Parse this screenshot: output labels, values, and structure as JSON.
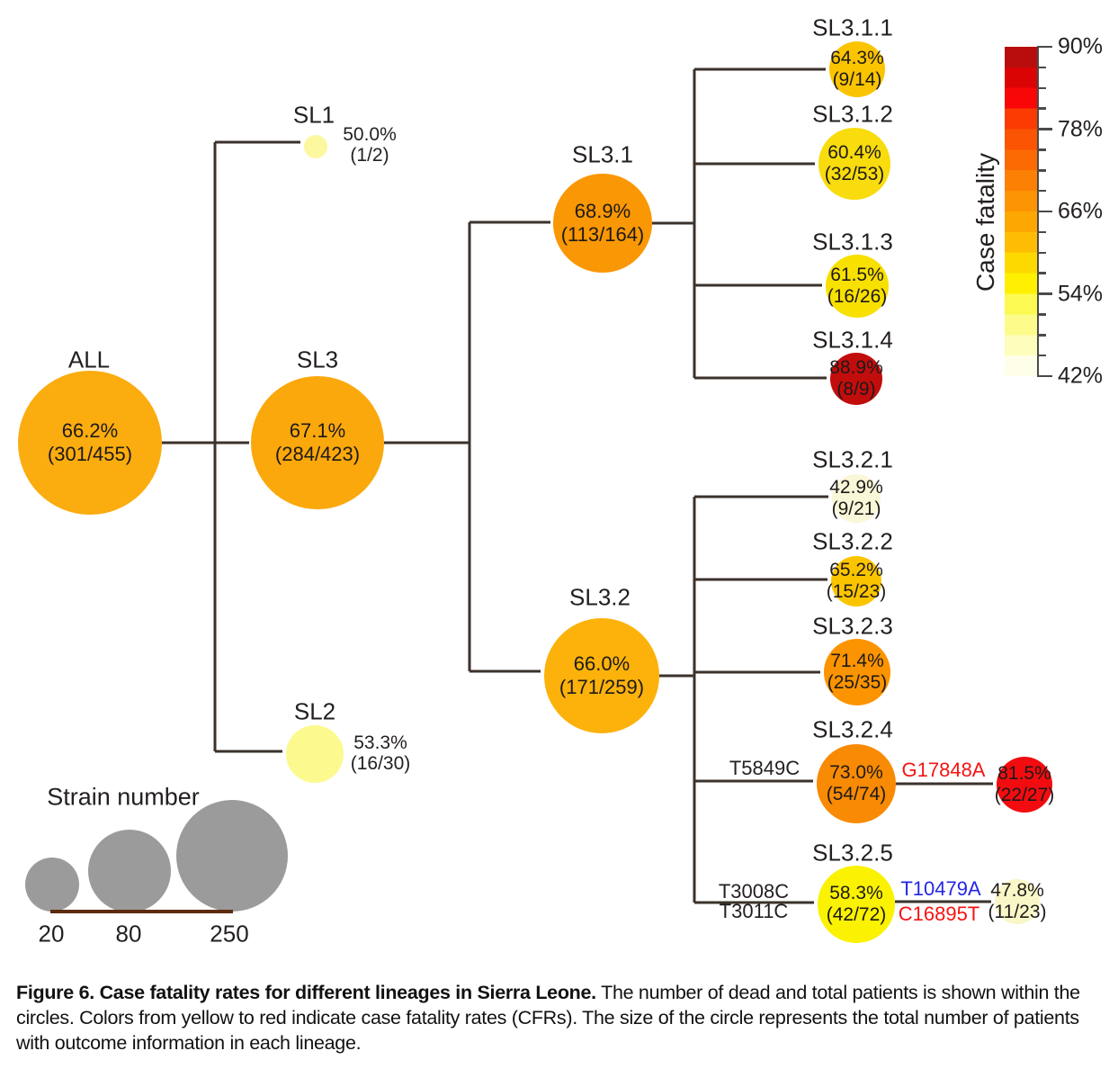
{
  "figure": {
    "line_color": "#3b322b",
    "nodes": {
      "all": {
        "label": "ALL",
        "cfr": "66.2%",
        "count": "(301/455)",
        "color": "#FBAC0F"
      },
      "sl1": {
        "label": "SL1",
        "cfr": "50.0%",
        "count": "(1/2)",
        "color": "#FBF8A0"
      },
      "sl2": {
        "label": "SL2",
        "cfr": "53.3%",
        "count": "(16/30)",
        "color": "#FCFA8E"
      },
      "sl3": {
        "label": "SL3",
        "cfr": "67.1%",
        "count": "(284/423)",
        "color": "#FBA80C"
      },
      "sl3_1": {
        "label": "SL3.1",
        "cfr": "68.9%",
        "count": "(113/164)",
        "color": "#FA9704"
      },
      "sl3_2": {
        "label": "SL3.2",
        "cfr": "66.0%",
        "count": "(171/259)",
        "color": "#FCB20B"
      },
      "sl3_1_1": {
        "label": "SL3.1.1",
        "cfr": "64.3%",
        "count": "(9/14)",
        "color": "#FBC400"
      },
      "sl3_1_2": {
        "label": "SL3.1.2",
        "cfr": "60.4%",
        "count": "(32/53)",
        "color": "#F8DC0D"
      },
      "sl3_1_3": {
        "label": "SL3.1.3",
        "cfr": "61.5%",
        "count": "(16/26)",
        "color": "#F8E000"
      },
      "sl3_1_4": {
        "label": "SL3.1.4",
        "cfr": "88.9%",
        "count": "(8/9)",
        "color": "#C20D0D"
      },
      "sl3_2_1": {
        "label": "SL3.2.1",
        "cfr": "42.9%",
        "count": "(9/21)",
        "color": "#FAF6D8"
      },
      "sl3_2_2": {
        "label": "SL3.2.2",
        "cfr": "65.2%",
        "count": "(15/23)",
        "color": "#FBC400"
      },
      "sl3_2_3": {
        "label": "SL3.2.3",
        "cfr": "71.4%",
        "count": "(25/35)",
        "color": "#FB9400"
      },
      "sl3_2_4": {
        "label": "SL3.2.4",
        "cfr": "73.0%",
        "count": "(54/74)",
        "color": "#F88A04"
      },
      "sl3_2_4m": {
        "cfr": "81.5%",
        "count": "(22/27)",
        "color": "#F20C10"
      },
      "sl3_2_5": {
        "label": "SL3.2.5",
        "cfr": "58.3%",
        "count": "(42/72)",
        "color": "#FAF201"
      },
      "sl3_2_5m": {
        "cfr": "47.8%",
        "count": "(11/23)",
        "color": "#F9F6C8"
      }
    },
    "mutations": {
      "t5849c": {
        "text": "T5849C",
        "color": "#231f20"
      },
      "g17848a": {
        "text": "G17848A",
        "color": "#F61313"
      },
      "t3008c": {
        "text": "T3008C",
        "color": "#231f20"
      },
      "t3011c": {
        "text": "T3011C",
        "color": "#231f20"
      },
      "t10479a": {
        "text": "T10479A",
        "color": "#2525E5"
      },
      "c16895t": {
        "text": "C16895T",
        "color": "#F61313"
      }
    },
    "edges": [
      {
        "from": "ALL",
        "to": "SL1"
      },
      {
        "from": "ALL",
        "to": "SL2"
      },
      {
        "from": "ALL",
        "to": "SL3"
      },
      {
        "from": "SL3",
        "to": "SL3.1"
      },
      {
        "from": "SL3",
        "to": "SL3.2"
      },
      {
        "from": "SL3.1",
        "to": "SL3.1.1"
      },
      {
        "from": "SL3.1",
        "to": "SL3.1.2"
      },
      {
        "from": "SL3.1",
        "to": "SL3.1.3"
      },
      {
        "from": "SL3.1",
        "to": "SL3.1.4"
      },
      {
        "from": "SL3.2",
        "to": "SL3.2.1"
      },
      {
        "from": "SL3.2",
        "to": "SL3.2.2"
      },
      {
        "from": "SL3.2",
        "to": "SL3.2.3"
      },
      {
        "from": "SL3.2",
        "to": "SL3.2.4",
        "mutation": "T5849C"
      },
      {
        "from": "SL3.2",
        "to": "SL3.2.5",
        "mutation": "T3008C, T3011C"
      },
      {
        "from": "SL3.2.4",
        "to": "SL3.2.4 subclade (81.5%)",
        "mutation": "G17848A"
      },
      {
        "from": "SL3.2.5",
        "to": "SL3.2.5 subclade (47.8%)",
        "mutation": "T10479A, C16895T"
      }
    ],
    "legend_cfr": {
      "title": "Case fatality",
      "tick_labels": [
        "90%",
        "78%",
        "66%",
        "54%",
        "42%"
      ],
      "colors_top_to_bottom": [
        "#B70D0D",
        "#DB0405",
        "#F90607",
        "#FB3B01",
        "#FB5403",
        "#FC6A03",
        "#FC8003",
        "#FD9403",
        "#FDA802",
        "#FEBC02",
        "#FED900",
        "#FEF000",
        "#FCFA52",
        "#FDFC8B",
        "#FEFDBC",
        "#FFFEE8"
      ]
    },
    "legend_size": {
      "title": "Strain number",
      "labels": [
        "20",
        "80",
        "250"
      ],
      "circle_color": "#9B9B9B",
      "baseline_color": "#5C2B0E"
    }
  },
  "caption": {
    "bold": "Figure 6. Case fatality rates for different lineages in Sierra Leone.",
    "text": " The number of dead and total patients is shown within the circles. Colors from yellow to red indicate case fatality rates (CFRs). The size of the circle represents the total number of patients with outcome information in each lineage."
  }
}
